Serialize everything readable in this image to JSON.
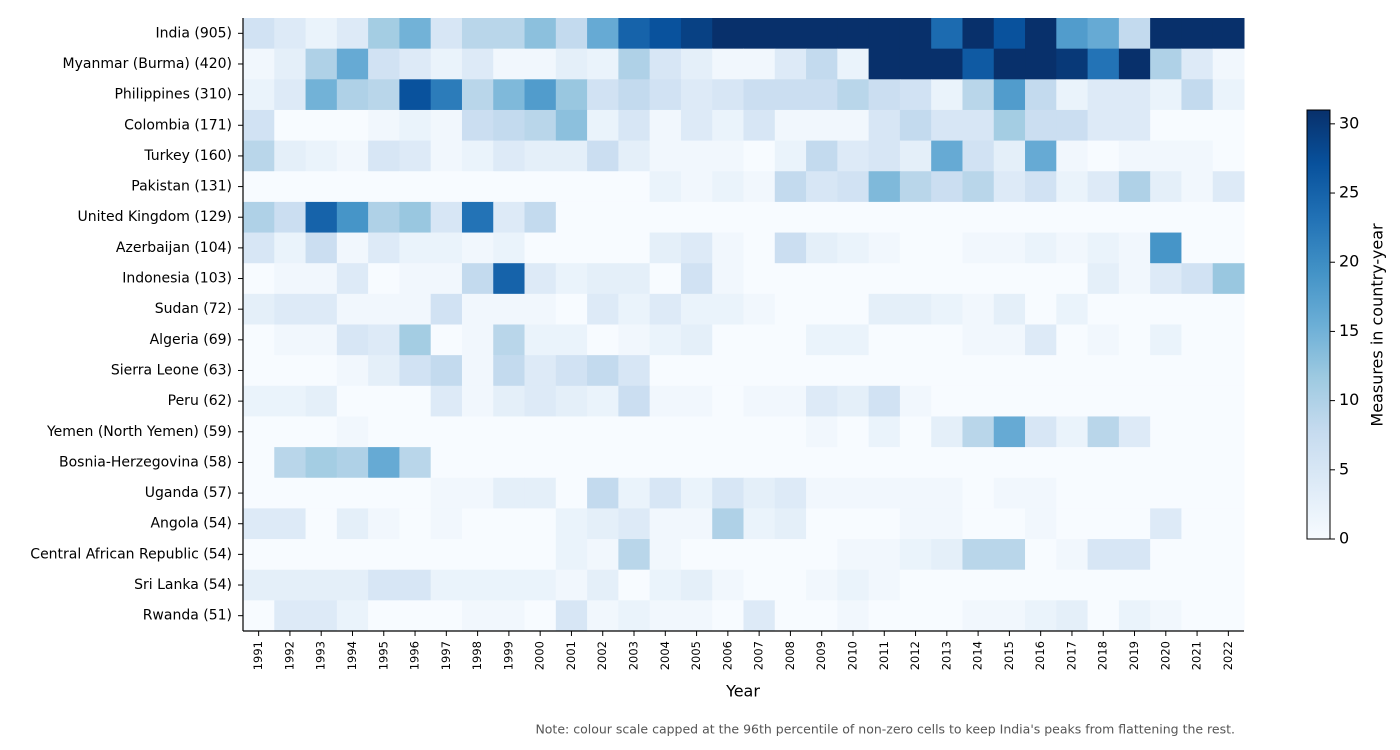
{
  "chart_data": {
    "type": "heatmap",
    "colormap": "Blues",
    "x_label": "Year",
    "colorbar_label": "Measures in country-year",
    "note": "Note: colour scale capped at the 96th percentile of non-zero cells to keep India's peaks from flattening the rest.",
    "categories": [
      "1991",
      "1992",
      "1993",
      "1994",
      "1995",
      "1996",
      "1997",
      "1998",
      "1999",
      "2000",
      "2001",
      "2002",
      "2003",
      "2004",
      "2005",
      "2006",
      "2007",
      "2008",
      "2009",
      "2010",
      "2011",
      "2012",
      "2013",
      "2014",
      "2015",
      "2016",
      "2017",
      "2018",
      "2019",
      "2020",
      "2021",
      "2022"
    ],
    "rows": [
      "India  (905)",
      "Myanmar (Burma)  (420)",
      "Philippines  (310)",
      "Colombia  (171)",
      "Turkey  (160)",
      "Pakistan  (131)",
      "United Kingdom  (129)",
      "Azerbaijan  (104)",
      "Indonesia  (103)",
      "Sudan  (72)",
      "Algeria  (69)",
      "Sierra Leone  (63)",
      "Peru  (62)",
      "Yemen (North Yemen)  (59)",
      "Bosnia-Herzegovina  (58)",
      "Uganda  (57)",
      "Angola  (54)",
      "Central African Republic  (54)",
      "Sri Lanka  (54)",
      "Rwanda  (51)"
    ],
    "values": [
      [
        6,
        4,
        2,
        4,
        11,
        15,
        5,
        9,
        9,
        13,
        8,
        16,
        25,
        27,
        29,
        45,
        60,
        52,
        48,
        55,
        50,
        62,
        24,
        58,
        27,
        47,
        18,
        16,
        8,
        50,
        52,
        50
      ],
      [
        1,
        3,
        10,
        16,
        6,
        4,
        2,
        4,
        1,
        1,
        3,
        2,
        10,
        5,
        3,
        1,
        1,
        4,
        8,
        2,
        33,
        35,
        32,
        26,
        34,
        36,
        30,
        23,
        33,
        10,
        4,
        1
      ],
      [
        2,
        4,
        15,
        10,
        9,
        27,
        22,
        9,
        14,
        18,
        12,
        6,
        8,
        6,
        4,
        5,
        7,
        7,
        7,
        9,
        7,
        6,
        2,
        9,
        18,
        8,
        2,
        4,
        4,
        2,
        8,
        2
      ],
      [
        6,
        0,
        0,
        0,
        1,
        2,
        1,
        7,
        8,
        9,
        13,
        2,
        5,
        1,
        4,
        2,
        5,
        1,
        1,
        1,
        5,
        8,
        5,
        5,
        11,
        7,
        7,
        4,
        4,
        0,
        0,
        0
      ],
      [
        9,
        3,
        2,
        1,
        5,
        4,
        1,
        2,
        4,
        3,
        3,
        7,
        3,
        1,
        1,
        1,
        0,
        2,
        8,
        4,
        5,
        3,
        16,
        6,
        3,
        16,
        1,
        0,
        1,
        1,
        1,
        0
      ],
      [
        0,
        0,
        0,
        0,
        0,
        0,
        0,
        0,
        0,
        0,
        0,
        0,
        0,
        2,
        1,
        2,
        1,
        8,
        5,
        6,
        14,
        9,
        7,
        9,
        4,
        6,
        2,
        4,
        10,
        3,
        1,
        4
      ],
      [
        10,
        7,
        25,
        19,
        10,
        12,
        5,
        23,
        4,
        8,
        0,
        0,
        0,
        0,
        0,
        0,
        0,
        0,
        0,
        0,
        0,
        0,
        0,
        0,
        0,
        0,
        0,
        0,
        0,
        0,
        0,
        0
      ],
      [
        5,
        2,
        7,
        1,
        4,
        2,
        2,
        1,
        2,
        0,
        0,
        0,
        0,
        3,
        4,
        1,
        0,
        7,
        3,
        2,
        1,
        0,
        0,
        1,
        1,
        2,
        1,
        2,
        1,
        19,
        0,
        0
      ],
      [
        0,
        1,
        1,
        4,
        0,
        1,
        1,
        8,
        25,
        4,
        2,
        3,
        3,
        0,
        6,
        1,
        0,
        0,
        0,
        0,
        0,
        0,
        0,
        0,
        0,
        0,
        0,
        3,
        1,
        4,
        6,
        12
      ],
      [
        3,
        4,
        4,
        1,
        1,
        1,
        6,
        1,
        1,
        1,
        0,
        4,
        2,
        4,
        2,
        2,
        1,
        0,
        0,
        0,
        3,
        3,
        2,
        1,
        3,
        0,
        2,
        0,
        0,
        0,
        0,
        0
      ],
      [
        0,
        1,
        1,
        5,
        4,
        11,
        0,
        1,
        9,
        2,
        2,
        0,
        1,
        2,
        3,
        0,
        0,
        0,
        2,
        2,
        0,
        0,
        0,
        1,
        1,
        4,
        0,
        1,
        0,
        2,
        0,
        0
      ],
      [
        0,
        0,
        0,
        1,
        3,
        6,
        8,
        1,
        8,
        4,
        6,
        8,
        5,
        0,
        0,
        0,
        0,
        0,
        0,
        0,
        0,
        0,
        0,
        0,
        0,
        0,
        0,
        0,
        0,
        0,
        0,
        0
      ],
      [
        2,
        2,
        3,
        0,
        0,
        0,
        4,
        1,
        3,
        4,
        3,
        2,
        7,
        1,
        1,
        0,
        1,
        1,
        4,
        3,
        6,
        1,
        0,
        0,
        0,
        0,
        0,
        0,
        0,
        0,
        0,
        0
      ],
      [
        0,
        0,
        0,
        1,
        0,
        0,
        0,
        0,
        0,
        0,
        0,
        0,
        0,
        0,
        0,
        0,
        0,
        0,
        1,
        0,
        2,
        0,
        3,
        9,
        16,
        5,
        2,
        9,
        4,
        0,
        0,
        0
      ],
      [
        0,
        9,
        11,
        10,
        16,
        9,
        0,
        0,
        0,
        0,
        0,
        0,
        0,
        0,
        0,
        0,
        0,
        0,
        0,
        0,
        0,
        0,
        0,
        0,
        0,
        0,
        0,
        0,
        0,
        0,
        0,
        0
      ],
      [
        0,
        0,
        0,
        0,
        0,
        0,
        1,
        1,
        3,
        3,
        0,
        8,
        2,
        5,
        2,
        5,
        3,
        4,
        1,
        1,
        1,
        1,
        1,
        0,
        1,
        1,
        0,
        0,
        0,
        0,
        0,
        0
      ],
      [
        4,
        4,
        0,
        3,
        1,
        0,
        1,
        0,
        0,
        0,
        2,
        3,
        4,
        1,
        1,
        10,
        2,
        3,
        0,
        0,
        0,
        1,
        1,
        0,
        0,
        1,
        0,
        0,
        0,
        4,
        0,
        0
      ],
      [
        0,
        0,
        0,
        0,
        0,
        0,
        0,
        0,
        0,
        0,
        2,
        1,
        9,
        1,
        0,
        0,
        0,
        0,
        0,
        1,
        1,
        2,
        3,
        9,
        9,
        0,
        1,
        5,
        5,
        0,
        0,
        0
      ],
      [
        3,
        3,
        3,
        3,
        5,
        5,
        2,
        2,
        2,
        2,
        1,
        3,
        0,
        2,
        3,
        1,
        0,
        0,
        1,
        2,
        1,
        0,
        0,
        0,
        0,
        0,
        0,
        0,
        0,
        0,
        0,
        0
      ],
      [
        0,
        4,
        4,
        2,
        0,
        0,
        0,
        1,
        1,
        0,
        5,
        1,
        2,
        1,
        1,
        0,
        4,
        0,
        0,
        1,
        0,
        0,
        0,
        1,
        1,
        2,
        3,
        0,
        2,
        1,
        0,
        0
      ]
    ],
    "zlim": [
      0,
      31
    ],
    "zticks": [
      0,
      5,
      10,
      15,
      20,
      25,
      30
    ]
  }
}
